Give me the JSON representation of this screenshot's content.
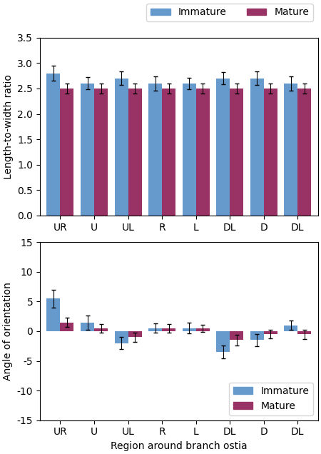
{
  "chart_data": [
    {
      "type": "bar",
      "categories": [
        "UR",
        "U",
        "UL",
        "R",
        "L",
        "DL",
        "D",
        "DL"
      ],
      "y_label": "Length-to-width ratio",
      "ylim": [
        0,
        3.5
      ],
      "yticks": [
        {
          "value": 0,
          "label": "0.0"
        },
        0.5,
        {
          "value": 1,
          "label": "1.0"
        },
        1.5,
        {
          "value": 2,
          "label": "2.0"
        },
        2.5,
        {
          "value": 3,
          "label": "3.0"
        },
        3.5
      ],
      "legend": "upper right",
      "series": [
        {
          "name": "Immature",
          "color": "#6699CC",
          "values": [
            2.8,
            2.6,
            2.7,
            2.6,
            2.6,
            2.7,
            2.7,
            2.6
          ],
          "errors": [
            0.15,
            0.12,
            0.13,
            0.14,
            0.11,
            0.12,
            0.13,
            0.14
          ]
        },
        {
          "name": "Mature",
          "color": "#993366",
          "values": [
            2.5,
            2.5,
            2.5,
            2.5,
            2.5,
            2.5,
            2.5,
            2.5
          ],
          "errors": [
            0.1,
            0.1,
            0.1,
            0.1,
            0.1,
            0.1,
            0.1,
            0.1
          ]
        }
      ]
    },
    {
      "type": "bar",
      "categories": [
        "UR",
        "U",
        "UL",
        "R",
        "L",
        "DL",
        "D",
        "DL"
      ],
      "x_label": "Region around branch ostia",
      "y_label": "Angle of orientation",
      "ylim": [
        -15,
        15
      ],
      "yticks": [
        -15,
        -10,
        -5,
        0,
        5,
        10,
        15
      ],
      "legend": "lower right",
      "series": [
        {
          "name": "Immature",
          "color": "#6699CC",
          "values": [
            5.5,
            1.5,
            -2.0,
            0.5,
            0.5,
            -3.5,
            -1.5,
            1.0
          ],
          "errors": [
            1.5,
            1.2,
            1.0,
            0.8,
            0.9,
            1.1,
            1.0,
            0.8
          ]
        },
        {
          "name": "Mature",
          "color": "#993366",
          "values": [
            1.5,
            0.5,
            -1.0,
            0.5,
            0.5,
            -1.5,
            -0.5,
            -0.5
          ],
          "errors": [
            0.8,
            0.7,
            0.8,
            0.7,
            0.6,
            0.9,
            0.7,
            0.8
          ]
        }
      ]
    }
  ]
}
